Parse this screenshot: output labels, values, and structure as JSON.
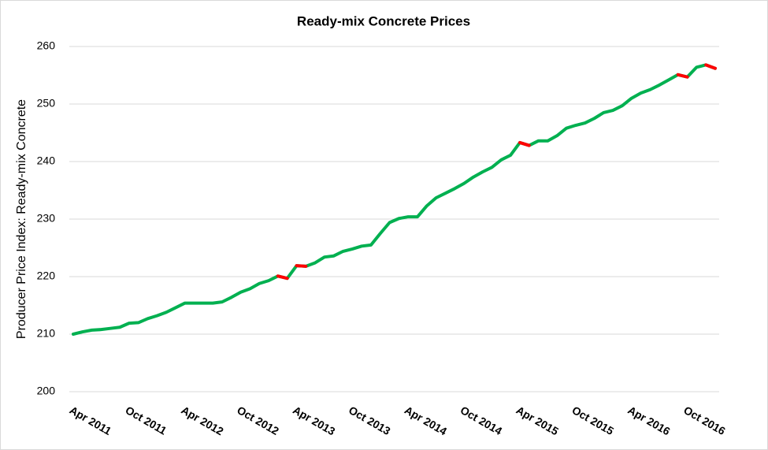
{
  "chart_data": {
    "type": "line",
    "title": "Ready-mix Concrete Prices",
    "ylabel": "Producer Price Index: Ready-mix Concrete",
    "categories": [
      "Apr 2011",
      null,
      null,
      null,
      null,
      null,
      "Oct 2011",
      null,
      null,
      null,
      null,
      null,
      "Apr 2012",
      null,
      null,
      null,
      null,
      null,
      "Oct 2012",
      null,
      null,
      null,
      null,
      null,
      "Apr 2013",
      null,
      null,
      null,
      null,
      null,
      "Oct 2013",
      null,
      null,
      null,
      null,
      null,
      "Apr 2014",
      null,
      null,
      null,
      null,
      null,
      "Oct 2014",
      null,
      null,
      null,
      null,
      null,
      "Apr 2015",
      null,
      null,
      null,
      null,
      null,
      "Oct 2015",
      null,
      null,
      null,
      null,
      null,
      "Apr 2016",
      null,
      null,
      null,
      null,
      null,
      "Oct 2016",
      null,
      null,
      null
    ],
    "values": [
      210.0,
      210.4,
      210.7,
      210.8,
      211.0,
      211.2,
      211.9,
      212.0,
      212.7,
      213.2,
      213.8,
      214.6,
      215.4,
      215.4,
      215.4,
      215.4,
      215.6,
      216.4,
      217.3,
      217.9,
      218.8,
      219.3,
      220.1,
      219.7,
      221.9,
      221.8,
      222.4,
      223.4,
      223.6,
      224.4,
      224.8,
      225.3,
      225.5,
      227.5,
      229.4,
      230.1,
      230.4,
      230.4,
      232.3,
      233.7,
      234.5,
      235.3,
      236.2,
      237.3,
      238.2,
      239.0,
      240.3,
      241.1,
      243.3,
      242.8,
      243.6,
      243.6,
      244.5,
      245.8,
      246.3,
      246.7,
      247.5,
      248.5,
      248.9,
      249.7,
      251.0,
      251.9,
      252.5,
      253.3,
      254.2,
      255.1,
      254.7,
      256.4,
      256.8,
      256.2
    ],
    "color": "#00b050",
    "decrease_color": "#ff0000",
    "ylim": [
      200,
      260
    ],
    "yticks": [
      200,
      210,
      220,
      230,
      240,
      250,
      260
    ],
    "grid": true
  }
}
